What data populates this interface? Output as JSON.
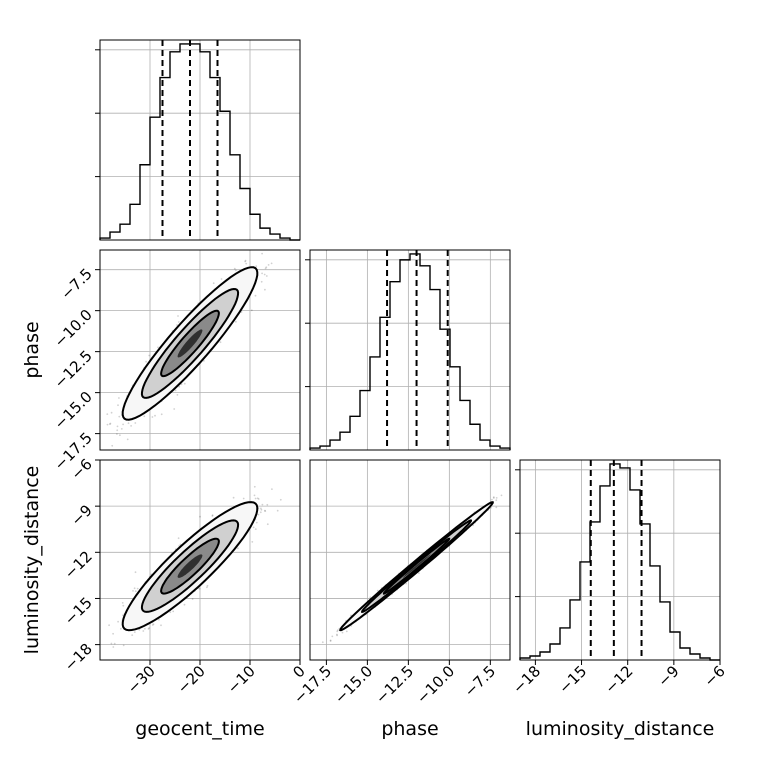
{
  "chart_data": {
    "type": "corner",
    "parameters": [
      "geocent_time",
      "phase",
      "luminosity_distance"
    ],
    "ranges": {
      "geocent_time": [
        -40,
        0
      ],
      "phase": [
        -18.5,
        -6.3
      ],
      "luminosity_distance": [
        -19,
        -6
      ]
    },
    "ticks": {
      "geocent_time": [
        -30,
        -20,
        -10,
        0
      ],
      "phase": [
        -17.5,
        -15.0,
        -12.5,
        -10.0,
        -7.5
      ],
      "luminosity_distance": [
        -18,
        -15,
        -12,
        -9,
        -6
      ]
    },
    "tick_labels": {
      "geocent_time": [
        "−30",
        "−20",
        "−10",
        "0"
      ],
      "phase": [
        "−17.5",
        "−15.0",
        "−12.5",
        "−10.0",
        "−7.5"
      ],
      "luminosity_distance": [
        "−18",
        "−15",
        "−12",
        "−9",
        "−6"
      ]
    },
    "medians": {
      "geocent_time": -22,
      "phase": -12.0,
      "luminosity_distance": -12.9
    },
    "quantiles_16_84": {
      "geocent_time": [
        -27.5,
        -16.5
      ],
      "phase": [
        -13.8,
        -10.1
      ],
      "luminosity_distance": [
        -14.4,
        -11.1
      ]
    },
    "histograms": {
      "geocent_time": {
        "bin_edges": [
          -40,
          -38,
          -36,
          -34,
          -32,
          -30,
          -28,
          -26,
          -24,
          -22,
          -20,
          -18,
          -16,
          -14,
          -12,
          -10,
          -8,
          -6,
          -4,
          -2,
          0
        ],
        "counts": [
          1,
          4,
          8,
          18,
          38,
          62,
          82,
          95,
          99,
          99,
          95,
          82,
          65,
          43,
          26,
          13,
          6,
          3,
          1,
          0
        ]
      },
      "phase": {
        "bin_edges": [
          -18.5,
          -17.89,
          -17.28,
          -16.67,
          -16.06,
          -15.45,
          -14.84,
          -14.23,
          -13.62,
          -13.01,
          -12.4,
          -11.79,
          -11.18,
          -10.57,
          -9.96,
          -9.35,
          -8.74,
          -8.13,
          -7.52,
          -6.91,
          -6.3
        ],
        "counts": [
          1,
          2,
          5,
          9,
          17,
          30,
          47,
          67,
          85,
          96,
          99,
          93,
          81,
          61,
          42,
          25,
          13,
          5,
          2,
          1
        ]
      },
      "luminosity_distance": {
        "bin_edges": [
          -19,
          -18.35,
          -17.7,
          -17.05,
          -16.4,
          -15.75,
          -15.1,
          -14.45,
          -13.8,
          -13.15,
          -12.5,
          -11.85,
          -11.2,
          -10.55,
          -9.9,
          -9.25,
          -8.6,
          -7.95,
          -7.3,
          -6.65,
          -6
        ],
        "counts": [
          1,
          2,
          4,
          8,
          16,
          30,
          49,
          69,
          87,
          98,
          96,
          85,
          68,
          47,
          29,
          14,
          6,
          3,
          1,
          0
        ]
      }
    },
    "joint": {
      "phase_vs_geocent_time": {
        "mean": [
          -22,
          -12.0
        ],
        "sd": [
          5.5,
          1.9
        ],
        "corr": 0.92
      },
      "luminosity_distance_vs_geocent_time": {
        "mean": [
          -22,
          -12.9
        ],
        "sd": [
          5.5,
          1.7
        ],
        "corr": 0.9
      },
      "luminosity_distance_vs_phase": {
        "mean": [
          -12.0,
          -12.9
        ],
        "sd": [
          1.9,
          1.7
        ],
        "corr": 0.995
      }
    },
    "grid": true
  }
}
